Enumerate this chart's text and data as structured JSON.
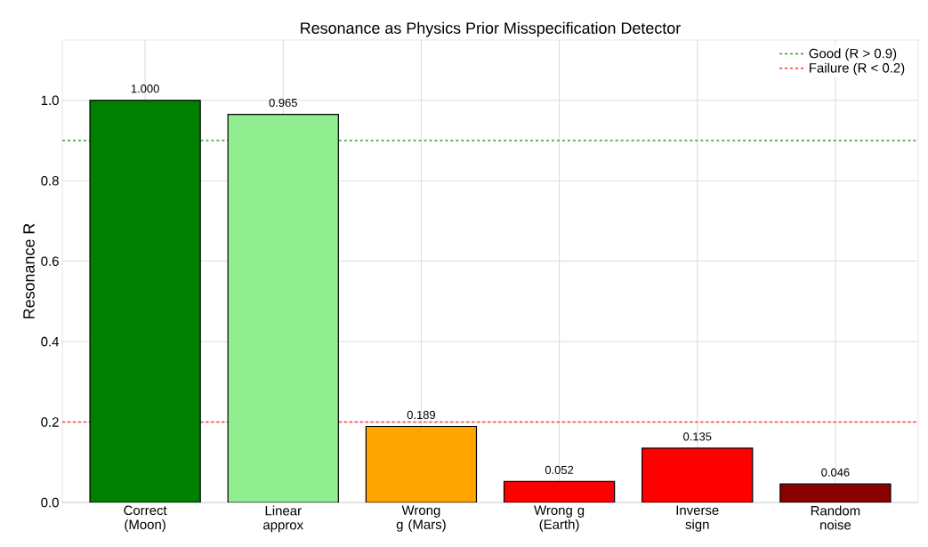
{
  "chart_data": {
    "type": "bar",
    "title": "Resonance as Physics Prior Misspecification Detector",
    "ylabel": "Resonance R",
    "categories": [
      "Correct (Moon)",
      "Linear approx",
      "Wrong g (Mars)",
      "Wrong g (Earth)",
      "Inverse sign",
      "Random noise"
    ],
    "values": [
      1.0,
      0.965,
      0.189,
      0.052,
      0.135,
      0.046
    ],
    "value_labels": [
      "1.000",
      "0.965",
      "0.189",
      "0.052",
      "0.135",
      "0.046"
    ],
    "colors": [
      "#008000",
      "#90ee90",
      "#ffa500",
      "#ff0000",
      "#ff0000",
      "#8b0000"
    ],
    "ylim": [
      0,
      1.15
    ],
    "yticks": [
      {
        "value": 0,
        "label": "0.0"
      },
      {
        "value": 0.2,
        "label": "0.2"
      },
      {
        "value": 0.4,
        "label": "0.4"
      },
      {
        "value": 0.6,
        "label": "0.6"
      },
      {
        "value": 0.8,
        "label": "0.8"
      },
      {
        "value": 1.0,
        "label": "1.0"
      }
    ],
    "ref_lines": [
      {
        "axis": "y",
        "value": 0.9,
        "label": "Good (R > 0.9)",
        "color": "#2ca02c",
        "line_style": "dashed"
      },
      {
        "axis": "y",
        "value": 0.2,
        "label": "Failure (R < 0.2)",
        "color": "#ff3333",
        "line_style": "dashed"
      }
    ],
    "grid": true,
    "legend": "top right"
  }
}
